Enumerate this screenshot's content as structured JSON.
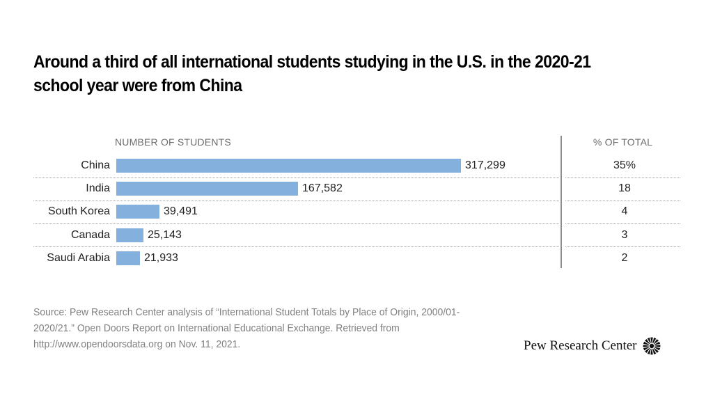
{
  "title": "Around a third of all international students studying in the U.S. in the 2020-21 school year were from China",
  "columns": {
    "left_header": "NUMBER OF STUDENTS",
    "right_header": "% OF TOTAL"
  },
  "rows": [
    {
      "label": "China",
      "value": 317299,
      "value_label": "317,299",
      "pct": "35%"
    },
    {
      "label": "India",
      "value": 167582,
      "value_label": "167,582",
      "pct": "18"
    },
    {
      "label": "South Korea",
      "value": 39491,
      "value_label": "39,491",
      "pct": "4"
    },
    {
      "label": "Canada",
      "value": 25143,
      "value_label": "25,143",
      "pct": "3"
    },
    {
      "label": "Saudi Arabia",
      "value": 21933,
      "value_label": "21,933",
      "pct": "2"
    }
  ],
  "source": "Source: Pew Research Center analysis of “International Student Totals by Place of Origin, 2000/01-2020/21.” Open Doors Report on International Educational Exchange. Retrieved from http://www.opendoorsdata.org on Nov. 11, 2021.",
  "logo": {
    "text": "Pew Research Center",
    "icon": "pew-starburst-icon"
  },
  "colors": {
    "bar": "#84b0de",
    "divider": "#8c8c8c",
    "source_text": "#808080",
    "header_text": "#6b6b6b"
  },
  "chart_data": {
    "type": "bar",
    "orientation": "horizontal",
    "title": "Around a third of all international students studying in the U.S. in the 2020-21 school year were from China",
    "categories": [
      "China",
      "India",
      "South Korea",
      "Canada",
      "Saudi Arabia"
    ],
    "values": [
      317299,
      167582,
      39491,
      25143,
      21933
    ],
    "xlabel": "NUMBER OF STUDENTS",
    "ylabel": "",
    "table_column": {
      "header": "% OF TOTAL",
      "values": [
        35,
        18,
        4,
        3,
        2
      ],
      "unit": "%"
    },
    "grid": false,
    "legend": null,
    "data_labels": true
  }
}
